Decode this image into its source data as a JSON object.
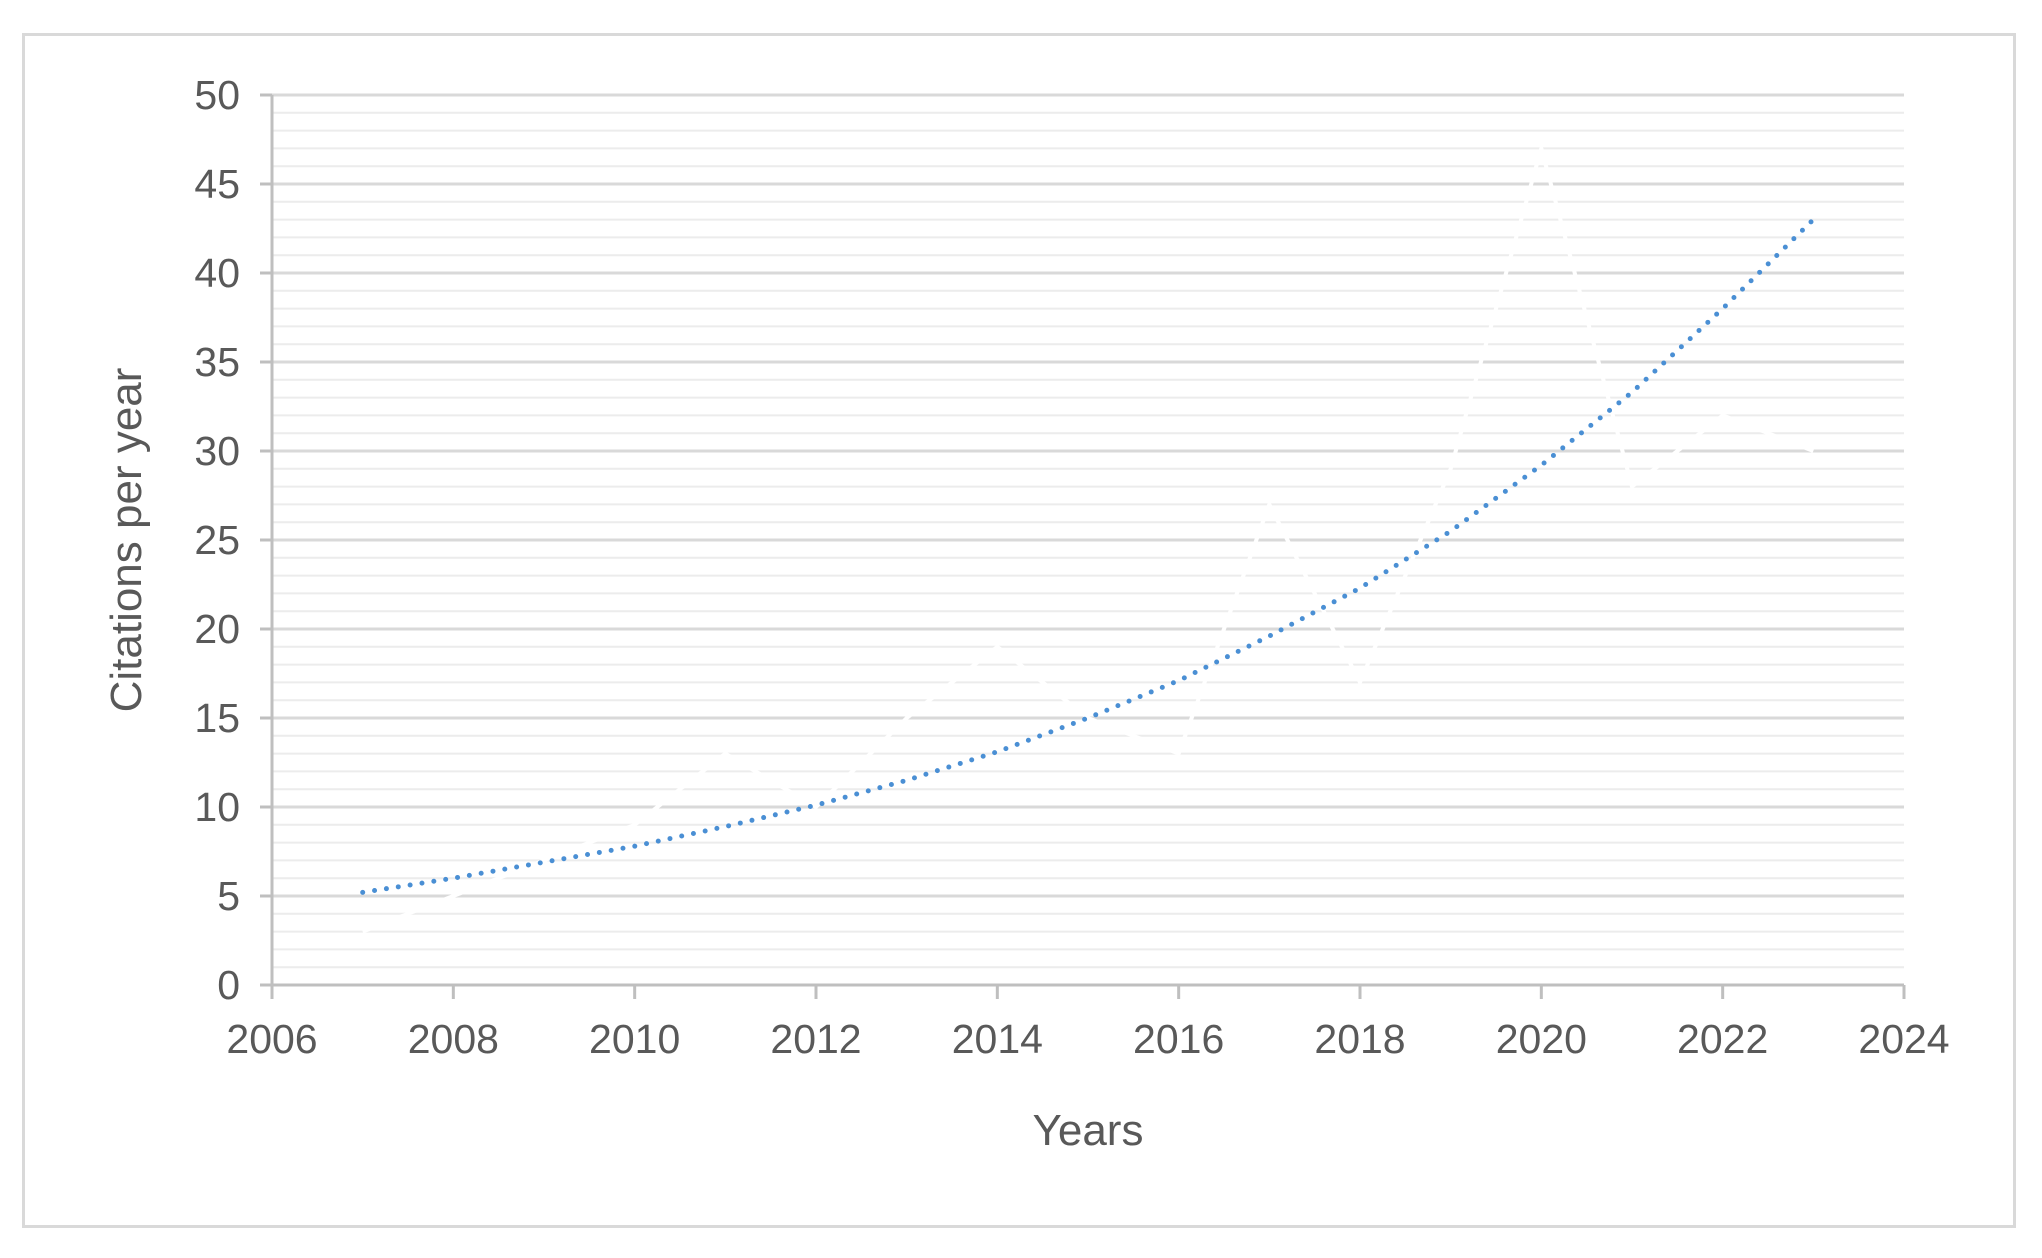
{
  "chart_data": {
    "type": "line",
    "title": "",
    "xlabel": "Years",
    "ylabel": "Citations per year",
    "xlim": [
      2006,
      2024
    ],
    "ylim": [
      0,
      50
    ],
    "x_ticks": [
      2006,
      2008,
      2010,
      2012,
      2014,
      2016,
      2018,
      2020,
      2022,
      2024
    ],
    "y_ticks": [
      0,
      5,
      10,
      15,
      20,
      25,
      30,
      35,
      40,
      45,
      50
    ],
    "grid": "horizontal major and minor",
    "legend": "none",
    "series": [
      {
        "style": "solid",
        "color": "#ffffff",
        "x": [
          2007,
          2008,
          2009,
          2010,
          2011,
          2012,
          2013,
          2014,
          2015,
          2016,
          2017,
          2018,
          2019,
          2020,
          2021,
          2022,
          2023
        ],
        "y": [
          3,
          5,
          7,
          9,
          13,
          10,
          15,
          19,
          15,
          13,
          27,
          17,
          29,
          47,
          28,
          32,
          30
        ]
      },
      {
        "style": "dotted",
        "color": "#4a8fd4",
        "x": [
          2007,
          2008,
          2009,
          2010,
          2011,
          2012,
          2013,
          2014,
          2015,
          2016,
          2017,
          2018,
          2019,
          2020,
          2021,
          2022,
          2023
        ],
        "y": [
          5.2,
          6.0,
          6.9,
          7.8,
          8.9,
          10.1,
          11.5,
          13.1,
          15.0,
          17.1,
          19.6,
          22.3,
          25.5,
          29.2,
          33.3,
          38.0,
          43.0
        ]
      }
    ]
  }
}
